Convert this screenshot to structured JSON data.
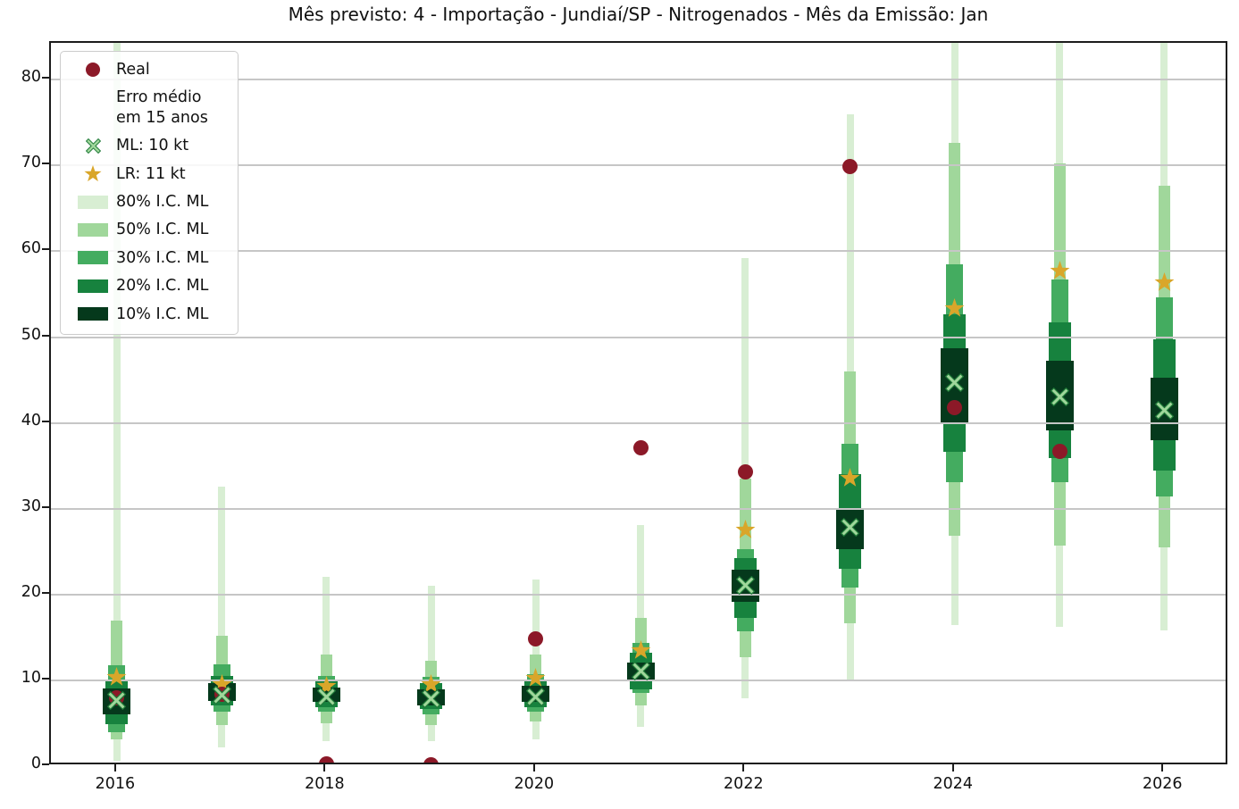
{
  "figure": {
    "title": "Mês previsto: 4 - Importação - Jundiaí/SP - Nitrogenados - Mês da Emissão: Jan"
  },
  "legend": {
    "position": "upper-left",
    "items": [
      {
        "label": "Real",
        "marker": "circle",
        "color": "#8c1928"
      },
      {
        "label": "Erro médio em 15 anos",
        "label_lines": [
          "Erro médio",
          "em 15 anos"
        ],
        "marker": "none",
        "color": ""
      },
      {
        "label": "ML: 10 kt",
        "marker": "x",
        "color": "#a0d79b"
      },
      {
        "label": "LR: 11 kt",
        "marker": "star",
        "color": "#d9a62a"
      },
      {
        "label": "80% I.C. ML",
        "marker": "patch",
        "color": "#d8eed3"
      },
      {
        "label": "50% I.C. ML",
        "marker": "patch",
        "color": "#a0d79b"
      },
      {
        "label": "30% I.C. ML",
        "marker": "patch",
        "color": "#44ac60"
      },
      {
        "label": "20% I.C. ML",
        "marker": "patch",
        "color": "#17823e"
      },
      {
        "label": "10% I.C. ML",
        "marker": "patch",
        "color": "#05391c"
      }
    ]
  },
  "chart_data": {
    "type": "scatter",
    "title": "Mês previsto: 4 - Importação - Jundiaí/SP - Nitrogenados - Mês da Emissão: Jan",
    "units": "kt",
    "grid": "horizontal, drawn above bands",
    "legend_position": "upper-left",
    "xlim": [
      2015.37,
      2026.62
    ],
    "ylim": [
      0,
      84.3
    ],
    "x_ticks": [
      2016,
      2018,
      2020,
      2022,
      2024,
      2026
    ],
    "y_ticks": [
      0,
      10,
      20,
      30,
      40,
      50,
      60,
      70,
      80
    ],
    "years": [
      2016,
      2017,
      2018,
      2019,
      2020,
      2021,
      2022,
      2023,
      2024,
      2025,
      2026
    ],
    "series": [
      {
        "name": "Real",
        "marker": "circle",
        "color": "#8c1928",
        "x": [
          2016,
          2017,
          2018,
          2019,
          2020,
          2021,
          2022,
          2023,
          2024,
          2025
        ],
        "y": [
          8.0,
          8.4,
          0.3,
          0.2,
          14.8,
          37.1,
          34.3,
          69.9,
          41.8,
          36.7
        ]
      },
      {
        "name": "ML: 10 kt",
        "marker": "x",
        "color": "#a0d79b",
        "edge_color": "#1f7a38",
        "x": [
          2016,
          2017,
          2018,
          2019,
          2020,
          2021,
          2022,
          2023,
          2024,
          2025,
          2026
        ],
        "y": [
          7.7,
          8.3,
          8.1,
          7.9,
          8.1,
          11.1,
          21.1,
          27.8,
          44.7,
          43.0,
          41.5
        ]
      },
      {
        "name": "LR: 11 kt",
        "marker": "star",
        "color": "#d9a62a",
        "x": [
          2016,
          2017,
          2018,
          2019,
          2020,
          2021,
          2022,
          2023,
          2024,
          2025,
          2026
        ],
        "y": [
          10.4,
          9.5,
          9.3,
          9.5,
          10.2,
          13.5,
          27.5,
          33.6,
          53.3,
          57.7,
          56.4
        ]
      }
    ],
    "ci_bands": [
      {
        "level": "80% I.C. ML",
        "color": "#d8eed3",
        "ranges": [
          [
            0.6,
            84.5
          ],
          [
            2.2,
            32.6
          ],
          [
            2.9,
            22.1
          ],
          [
            2.9,
            21.0
          ],
          [
            3.1,
            21.8
          ],
          [
            4.6,
            28.1
          ],
          [
            7.9,
            59.2
          ],
          [
            10.1,
            76.0
          ],
          [
            16.4,
            84.5
          ],
          [
            16.2,
            84.5
          ],
          [
            15.8,
            84.5
          ]
        ]
      },
      {
        "level": "50% I.C. ML",
        "color": "#a0d79b",
        "ranges": [
          [
            3.1,
            17.0
          ],
          [
            4.8,
            15.2
          ],
          [
            5.0,
            13.0
          ],
          [
            4.8,
            12.3
          ],
          [
            5.2,
            13.0
          ],
          [
            7.1,
            17.3
          ],
          [
            12.7,
            33.5
          ],
          [
            16.6,
            46.0
          ],
          [
            26.9,
            72.6
          ],
          [
            25.7,
            70.3
          ],
          [
            25.5,
            67.7
          ]
        ]
      },
      {
        "level": "30% I.C. ML",
        "color": "#44ac60",
        "ranges": [
          [
            4.0,
            11.8
          ],
          [
            6.4,
            11.9
          ],
          [
            6.4,
            10.5
          ],
          [
            6.0,
            10.4
          ],
          [
            6.4,
            10.7
          ],
          [
            8.5,
            14.4
          ],
          [
            15.7,
            25.3
          ],
          [
            20.8,
            37.6
          ],
          [
            33.1,
            58.5
          ],
          [
            33.1,
            56.7
          ],
          [
            31.4,
            54.6
          ]
        ]
      },
      {
        "level": "20% I.C. ML",
        "color": "#17823e",
        "ranges": [
          [
            4.9,
            9.9
          ],
          [
            7.1,
            10.5
          ],
          [
            6.9,
            10.0
          ],
          [
            6.7,
            9.7
          ],
          [
            6.9,
            10.1
          ],
          [
            9.0,
            13.2
          ],
          [
            17.3,
            24.2
          ],
          [
            23.0,
            34.0
          ],
          [
            36.6,
            52.7
          ],
          [
            35.9,
            51.7
          ],
          [
            34.5,
            49.7
          ]
        ]
      },
      {
        "level": "10% I.C. ML",
        "color": "#05391c",
        "ranges": [
          [
            6.0,
            9.1
          ],
          [
            7.6,
            9.7
          ],
          [
            7.5,
            9.2
          ],
          [
            7.1,
            9.0
          ],
          [
            7.5,
            9.4
          ],
          [
            10.0,
            12.1
          ],
          [
            19.2,
            22.9
          ],
          [
            25.3,
            30.0
          ],
          [
            39.9,
            48.7
          ],
          [
            39.1,
            47.2
          ],
          [
            38.0,
            45.3
          ]
        ]
      }
    ]
  }
}
